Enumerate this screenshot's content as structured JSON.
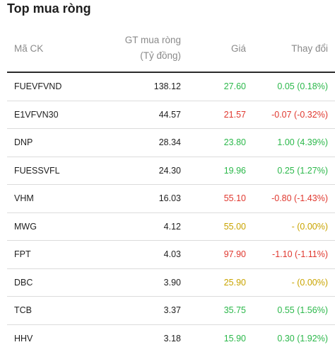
{
  "title": "Top mua ròng",
  "columns": {
    "code": "Mã CK",
    "gt_line1": "GT mua ròng",
    "gt_line2": "(Tỷ đồng)",
    "price": "Giá",
    "change": "Thay đổi"
  },
  "colors": {
    "up": "#2bb84a",
    "down": "#e0382f",
    "ref": "#c9a400"
  },
  "rows": [
    {
      "code": "FUEVFVND",
      "gt": "138.12",
      "price": "27.60",
      "change": "0.05 (0.18%)",
      "trend": "up"
    },
    {
      "code": "E1VFVN30",
      "gt": "44.57",
      "price": "21.57",
      "change": "-0.07 (-0.32%)",
      "trend": "down"
    },
    {
      "code": "DNP",
      "gt": "28.34",
      "price": "23.80",
      "change": "1.00 (4.39%)",
      "trend": "up"
    },
    {
      "code": "FUESSVFL",
      "gt": "24.30",
      "price": "19.96",
      "change": "0.25 (1.27%)",
      "trend": "up"
    },
    {
      "code": "VHM",
      "gt": "16.03",
      "price": "55.10",
      "change": "-0.80 (-1.43%)",
      "trend": "down"
    },
    {
      "code": "MWG",
      "gt": "4.12",
      "price": "55.00",
      "change": "- (0.00%)",
      "trend": "ref"
    },
    {
      "code": "FPT",
      "gt": "4.03",
      "price": "97.90",
      "change": "-1.10 (-1.11%)",
      "trend": "down"
    },
    {
      "code": "DBC",
      "gt": "3.90",
      "price": "25.90",
      "change": "- (0.00%)",
      "trend": "ref"
    },
    {
      "code": "TCB",
      "gt": "3.37",
      "price": "35.75",
      "change": "0.55 (1.56%)",
      "trend": "up"
    },
    {
      "code": "HHV",
      "gt": "3.18",
      "price": "15.90",
      "change": "0.30 (1.92%)",
      "trend": "up"
    }
  ]
}
